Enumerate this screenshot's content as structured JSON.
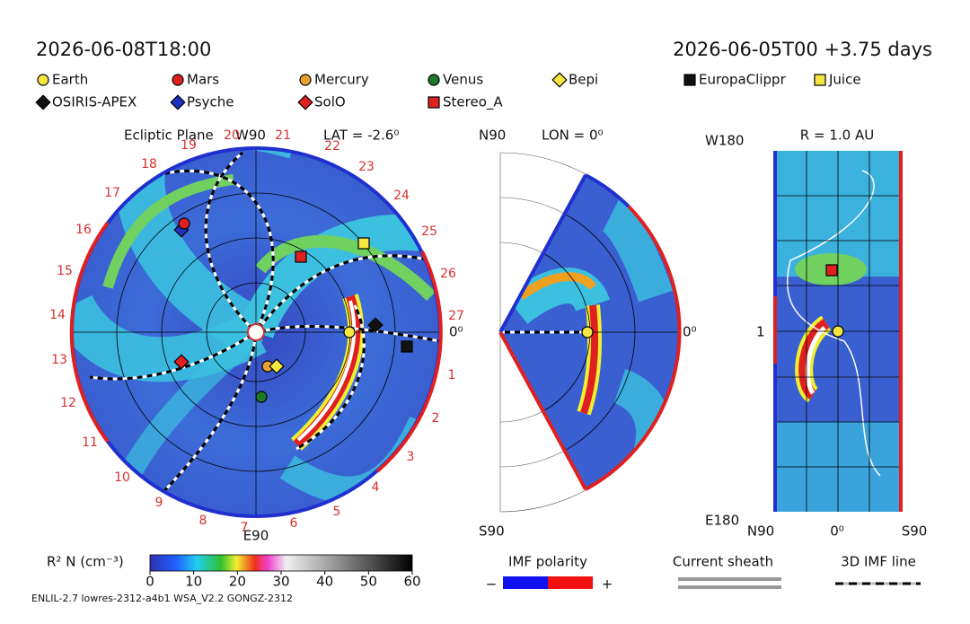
{
  "header": {
    "time": "2026-06-08T18:00",
    "run": "2026-06-05T00 +3.75 days"
  },
  "legend": [
    {
      "name": "Earth",
      "marker": "circle",
      "color": "#f5e642"
    },
    {
      "name": "Mars",
      "marker": "circle",
      "color": "#e02020"
    },
    {
      "name": "Mercury",
      "marker": "circle",
      "color": "#e8a030"
    },
    {
      "name": "Venus",
      "marker": "circle",
      "color": "#1e7a2a"
    },
    {
      "name": "Bepi",
      "marker": "diamond",
      "color": "#f5e642"
    },
    {
      "name": "EuropaClippr",
      "marker": "square",
      "color": "#111111"
    },
    {
      "name": "Juice",
      "marker": "square",
      "color": "#f5e642"
    },
    {
      "name": "OSIRIS-APEX",
      "marker": "diamond",
      "color": "#111111"
    },
    {
      "name": "Psyche",
      "marker": "diamond",
      "color": "#2030c0"
    },
    {
      "name": "SolO",
      "marker": "diamond",
      "color": "#e02020"
    },
    {
      "name": "Stereo_A",
      "marker": "square",
      "color": "#e02020"
    }
  ],
  "ecliptic": {
    "title": "Ecliptic Plane",
    "top": "W90",
    "bottom": "E90",
    "lat": "LAT = -2.6⁰",
    "right": "0⁰",
    "sectors": [
      "1",
      "2",
      "3",
      "4",
      "5",
      "6",
      "7",
      "8",
      "9",
      "10",
      "11",
      "12",
      "13",
      "14",
      "15",
      "16",
      "17",
      "18",
      "19",
      "20",
      "21",
      "22",
      "23",
      "24",
      "25",
      "26",
      "27"
    ]
  },
  "meridional": {
    "top": "N90",
    "lon": "LON = 0⁰",
    "bottom": "S90",
    "right": "0⁰"
  },
  "sphere": {
    "title": "R = 1.0 AU",
    "top": "W180",
    "bottom": "E180",
    "left": "1",
    "xlabels": [
      "N90",
      "0⁰",
      "S90"
    ]
  },
  "colorbar": {
    "label": "R² N (cm⁻³)",
    "range": [
      0,
      60
    ],
    "ticks": [
      0,
      10,
      20,
      30,
      40,
      50,
      60
    ]
  },
  "imf": {
    "title": "IMF polarity",
    "minus": "−",
    "plus": "+"
  },
  "sheath": "Current sheath",
  "imf_line": "3D IMF line",
  "footer": "ENLIL-2.7 lowres-2312-a4b1 WSA_V2.2 GONGZ-2312"
}
